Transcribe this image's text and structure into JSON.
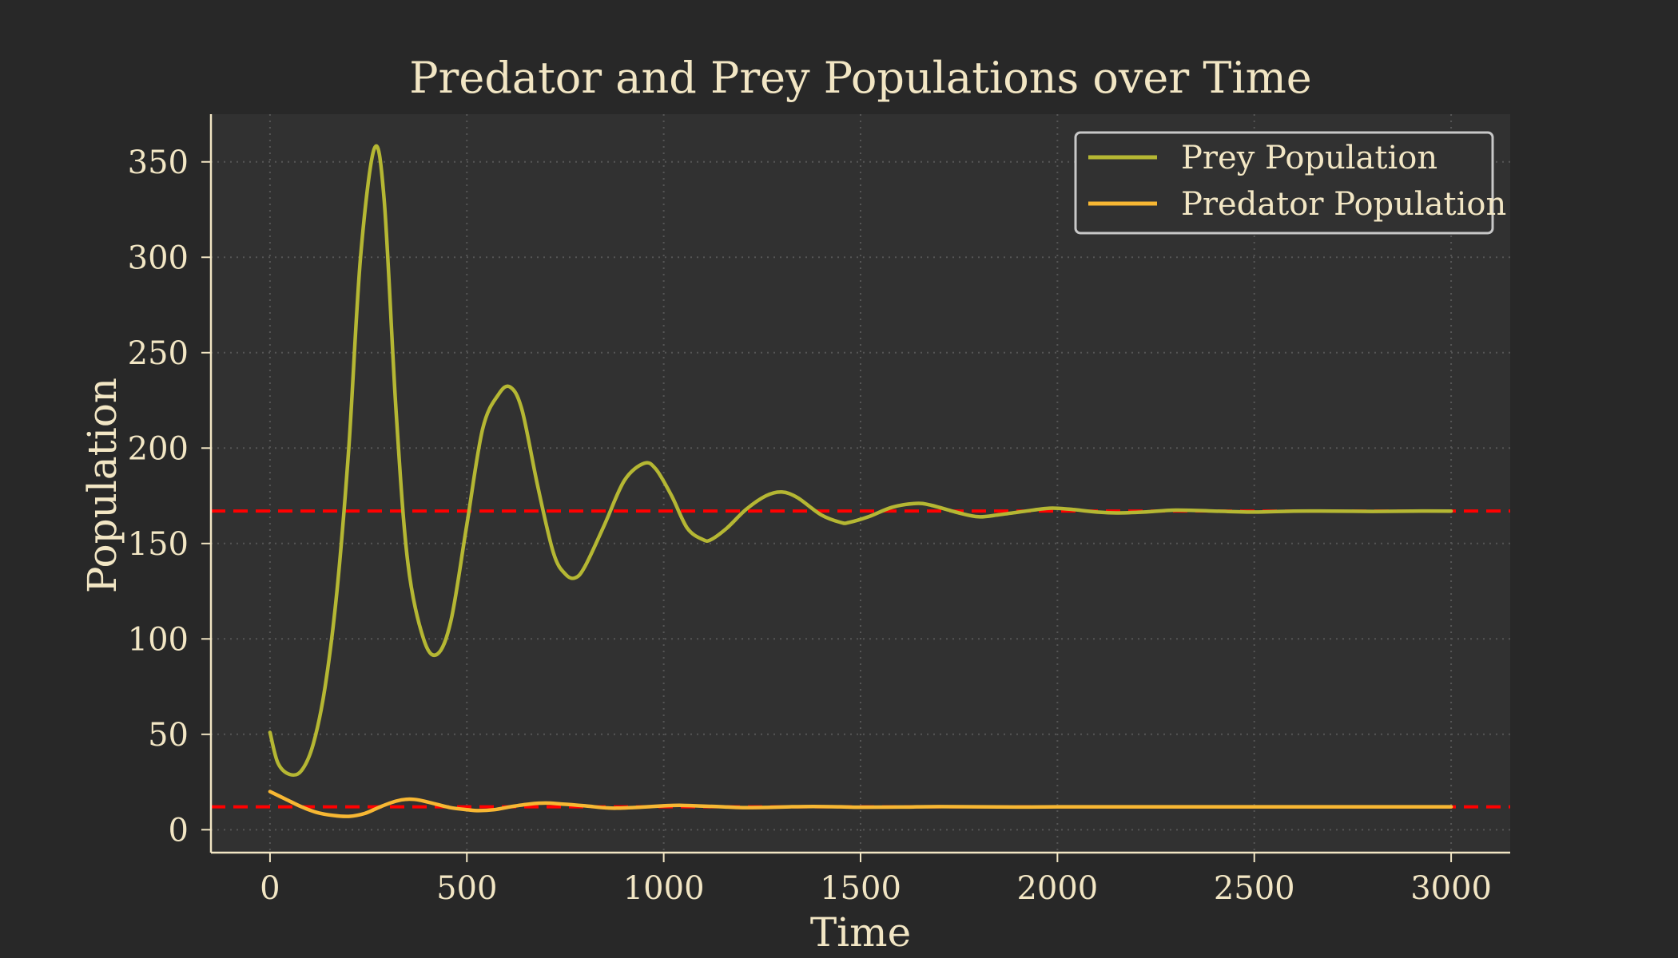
{
  "colors": {
    "background": "#282828",
    "plot_background": "#313131",
    "text": "#f2e6c4",
    "grid": "#555555",
    "prey": "#b5b733",
    "predator": "#f7b733",
    "equilibrium": "#ff0000",
    "legend_border": "#c8c8c8"
  },
  "chart_data": {
    "type": "line",
    "title": "Predator and Prey Populations over Time",
    "xlabel": "Time",
    "ylabel": "Population",
    "xlim": [
      -150,
      3150
    ],
    "ylim": [
      -12,
      375
    ],
    "xticks": [
      0,
      500,
      1000,
      1500,
      2000,
      2500,
      3000
    ],
    "yticks": [
      0,
      50,
      100,
      150,
      200,
      250,
      300,
      350
    ],
    "grid": true,
    "grid_style": "dotted",
    "legend_position": "top-right",
    "series": [
      {
        "name": "Prey Population",
        "color": "#b5b733",
        "points": [
          [
            0,
            51
          ],
          [
            20,
            35
          ],
          [
            50,
            29
          ],
          [
            80,
            31
          ],
          [
            110,
            45
          ],
          [
            140,
            75
          ],
          [
            170,
            125
          ],
          [
            200,
            200
          ],
          [
            230,
            300
          ],
          [
            265,
            357
          ],
          [
            290,
            330
          ],
          [
            320,
            220
          ],
          [
            350,
            140
          ],
          [
            390,
            100
          ],
          [
            425,
            92
          ],
          [
            460,
            110
          ],
          [
            500,
            160
          ],
          [
            540,
            210
          ],
          [
            580,
            228
          ],
          [
            610,
            232
          ],
          [
            640,
            220
          ],
          [
            680,
            180
          ],
          [
            720,
            145
          ],
          [
            750,
            134
          ],
          [
            775,
            132
          ],
          [
            800,
            138
          ],
          [
            850,
            160
          ],
          [
            900,
            183
          ],
          [
            950,
            192
          ],
          [
            980,
            189
          ],
          [
            1020,
            175
          ],
          [
            1060,
            158
          ],
          [
            1100,
            152
          ],
          [
            1120,
            152
          ],
          [
            1160,
            158
          ],
          [
            1210,
            168
          ],
          [
            1260,
            175
          ],
          [
            1300,
            177
          ],
          [
            1340,
            174
          ],
          [
            1400,
            165
          ],
          [
            1450,
            161
          ],
          [
            1470,
            161
          ],
          [
            1520,
            164
          ],
          [
            1580,
            169
          ],
          [
            1640,
            171
          ],
          [
            1680,
            170
          ],
          [
            1750,
            166
          ],
          [
            1800,
            164
          ],
          [
            1850,
            165
          ],
          [
            1920,
            167
          ],
          [
            1980,
            168.5
          ],
          [
            2030,
            168
          ],
          [
            2100,
            166.5
          ],
          [
            2150,
            166
          ],
          [
            2220,
            166.5
          ],
          [
            2300,
            167.5
          ],
          [
            2400,
            167
          ],
          [
            2500,
            166.5
          ],
          [
            2600,
            167
          ],
          [
            2700,
            167
          ],
          [
            2800,
            166.8
          ],
          [
            2900,
            167
          ],
          [
            3000,
            167
          ]
        ]
      },
      {
        "name": "Predator Population",
        "color": "#f7b733",
        "points": [
          [
            0,
            20
          ],
          [
            40,
            16
          ],
          [
            80,
            12
          ],
          [
            120,
            9
          ],
          [
            160,
            7.5
          ],
          [
            200,
            7
          ],
          [
            240,
            8.5
          ],
          [
            280,
            12
          ],
          [
            320,
            15
          ],
          [
            350,
            16
          ],
          [
            380,
            15.5
          ],
          [
            420,
            13.5
          ],
          [
            460,
            11.5
          ],
          [
            500,
            10.5
          ],
          [
            530,
            10
          ],
          [
            570,
            10.5
          ],
          [
            610,
            12
          ],
          [
            660,
            13.5
          ],
          [
            700,
            14
          ],
          [
            740,
            13.5
          ],
          [
            800,
            12.5
          ],
          [
            850,
            11.5
          ],
          [
            880,
            11.3
          ],
          [
            940,
            11.8
          ],
          [
            1000,
            12.5
          ],
          [
            1040,
            12.8
          ],
          [
            1100,
            12.4
          ],
          [
            1150,
            12
          ],
          [
            1200,
            11.6
          ],
          [
            1260,
            11.7
          ],
          [
            1320,
            12
          ],
          [
            1380,
            12.2
          ],
          [
            1450,
            12
          ],
          [
            1500,
            11.8
          ],
          [
            1600,
            11.9
          ],
          [
            1700,
            12.1
          ],
          [
            1800,
            12
          ],
          [
            1900,
            11.9
          ],
          [
            2000,
            12
          ],
          [
            2200,
            12
          ],
          [
            2500,
            12
          ],
          [
            2800,
            12
          ],
          [
            3000,
            12
          ]
        ]
      }
    ],
    "reference_lines": [
      {
        "orientation": "horizontal",
        "y": 167,
        "style": "dashed",
        "color": "#ff0000"
      },
      {
        "orientation": "horizontal",
        "y": 12,
        "style": "dashed",
        "color": "#ff0000"
      }
    ]
  }
}
